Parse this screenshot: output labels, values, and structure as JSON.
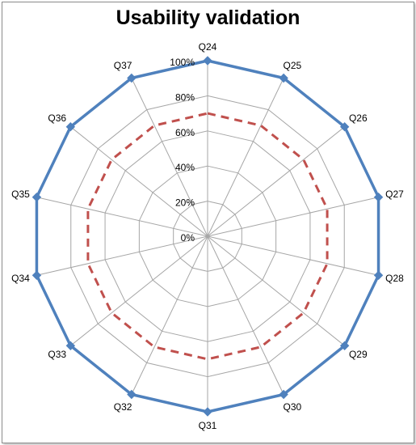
{
  "chart_data": {
    "type": "radar",
    "title": "Usability validation",
    "categories": [
      "Q24",
      "Q25",
      "Q26",
      "Q27",
      "Q28",
      "Q29",
      "Q30",
      "Q31",
      "Q32",
      "Q33",
      "Q34",
      "Q35",
      "Q36",
      "Q37"
    ],
    "rlim": [
      0,
      1
    ],
    "tick_values": [
      0,
      0.2,
      0.4,
      0.6,
      0.8,
      1.0
    ],
    "tick_labels": [
      "0%",
      "20%",
      "40%",
      "60%",
      "80%",
      "100%"
    ],
    "grid": true,
    "legend": "none",
    "series": [
      {
        "values": [
          1,
          1,
          1,
          1,
          1,
          1,
          1,
          1,
          1,
          1,
          1,
          1,
          1,
          1
        ],
        "color": "#4f81bd",
        "style": "solid",
        "markers": "diamond"
      },
      {
        "values": [
          0.7,
          0.7,
          0.7,
          0.7,
          0.7,
          0.7,
          0.7,
          0.7,
          0.7,
          0.7,
          0.7,
          0.7,
          0.7,
          0.7
        ],
        "color": "#c0504d",
        "style": "dashed",
        "markers": "none"
      }
    ]
  }
}
